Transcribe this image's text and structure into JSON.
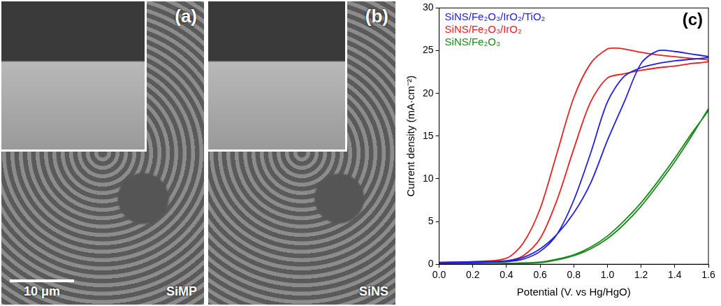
{
  "images": [
    {
      "label": "(a)",
      "caption": "SiMP",
      "scale_bar": "10 μm"
    },
    {
      "label": "(b)",
      "caption": "SiNS"
    }
  ],
  "chart_data": {
    "type": "line",
    "panel_label": "(c)",
    "x_label": "Potential (V. vs Hg/HgO)",
    "y_label": "Current density (mA·cm⁻²)",
    "xlim": [
      0,
      1.6
    ],
    "xticks": [
      {
        "value": 0,
        "label": "0.0"
      },
      {
        "value": 0.2,
        "label": "0.2"
      },
      {
        "value": 0.4,
        "label": "0.4"
      },
      {
        "value": 0.6,
        "label": "0.6"
      },
      {
        "value": 0.8,
        "label": "0.8"
      },
      {
        "value": 1.0,
        "label": "1.0"
      },
      {
        "value": 1.2,
        "label": "1.2"
      },
      {
        "value": 1.4,
        "label": "1.4"
      },
      {
        "value": 1.6,
        "label": "1.6"
      }
    ],
    "ylim": [
      0,
      30
    ],
    "yticks": [
      0,
      5,
      10,
      15,
      20,
      25,
      30
    ],
    "grid": false,
    "legend": "top left",
    "series": [
      {
        "name": "SiNS/Fe₂O₃/IrO₂/TiO₂",
        "color": "#2020e0",
        "x": [
          0,
          0.2,
          0.4,
          0.5,
          0.6,
          0.7,
          0.8,
          0.9,
          1.0,
          1.1,
          1.2,
          1.3,
          1.4,
          1.5,
          1.6,
          1.6,
          1.5,
          1.4,
          1.3,
          1.2,
          1.1,
          1.0,
          0.9,
          0.8,
          0.7,
          0.6,
          0.5,
          0.4,
          0.2,
          0
        ],
        "values": [
          0.2,
          0.3,
          0.4,
          0.8,
          1.8,
          3.5,
          6,
          9.5,
          14.5,
          19,
          23.5,
          25,
          24.9,
          24.6,
          24.3,
          24.2,
          24,
          23.8,
          23.5,
          23,
          22,
          19,
          13,
          7.5,
          3.5,
          1.5,
          0.6,
          0.3,
          0.2,
          0.1
        ]
      },
      {
        "name": "SiNS/Fe₂O₃/IrO₂",
        "color": "#e82020",
        "x": [
          0,
          0.2,
          0.4,
          0.5,
          0.6,
          0.7,
          0.8,
          0.9,
          1.0,
          1.05,
          1.1,
          1.2,
          1.3,
          1.4,
          1.5,
          1.6,
          1.6,
          1.5,
          1.4,
          1.3,
          1.2,
          1.1,
          1.0,
          0.9,
          0.8,
          0.7,
          0.6,
          0.5,
          0.4,
          0.2,
          0
        ],
        "values": [
          0.2,
          0.3,
          0.7,
          2.5,
          6.5,
          13,
          19.5,
          23.5,
          25.2,
          25.3,
          25.2,
          24.8,
          24.5,
          24.3,
          24.1,
          23.9,
          23.7,
          23.5,
          23.2,
          23,
          22.7,
          22.3,
          21.8,
          19,
          13.5,
          7.5,
          3,
          1,
          0.4,
          0.2,
          0.1
        ]
      },
      {
        "name": "SiNS/Fe₂O₃",
        "color": "#1a8a1a",
        "x": [
          0,
          0.2,
          0.4,
          0.6,
          0.7,
          0.8,
          0.9,
          1.0,
          1.1,
          1.2,
          1.3,
          1.4,
          1.5,
          1.6,
          1.6,
          1.5,
          1.4,
          1.3,
          1.2,
          1.1,
          1.0,
          0.9,
          0.8,
          0.7,
          0.6,
          0.4,
          0.2,
          0
        ],
        "values": [
          0,
          0,
          0.05,
          0.2,
          0.5,
          1,
          1.8,
          3,
          4.7,
          6.8,
          9.3,
          12,
          15,
          18.2,
          18,
          15.3,
          12.4,
          9.7,
          7.2,
          5.1,
          3.3,
          2,
          1.1,
          0.6,
          0.25,
          0.1,
          0.05,
          0.05
        ]
      }
    ]
  }
}
